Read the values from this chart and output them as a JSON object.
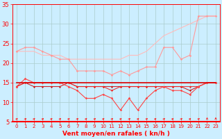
{
  "x": [
    0,
    1,
    2,
    3,
    4,
    5,
    6,
    7,
    8,
    9,
    10,
    11,
    12,
    13,
    14,
    15,
    16,
    17,
    18,
    19,
    20,
    21,
    22,
    23
  ],
  "bg_color": "#cceeff",
  "grid_color": "#aacccc",
  "tick_color": "#ff0000",
  "label_color": "#ff0000",
  "xlabel": "Vent moyen/en rafales ( kn/h )",
  "ylim": [
    5,
    35
  ],
  "yticks": [
    5,
    10,
    15,
    20,
    25,
    30,
    35
  ],
  "series": [
    {
      "values": [
        23,
        24,
        24,
        23,
        22,
        21,
        21,
        18,
        18,
        18,
        18,
        17,
        18,
        17,
        18,
        19,
        19,
        24,
        24,
        21,
        22,
        32,
        32,
        32
      ],
      "color": "#ff9999",
      "lw": 0.8,
      "marker": "D",
      "ms": 1.8,
      "zorder": 3
    },
    {
      "values": [
        23,
        23,
        23,
        22,
        22,
        22,
        21,
        21,
        21,
        21,
        21,
        21,
        21,
        22,
        22,
        23,
        25,
        27,
        28,
        29,
        30,
        31,
        32,
        32
      ],
      "color": "#ffbbbb",
      "lw": 0.8,
      "marker": null,
      "ms": 0,
      "zorder": 2
    },
    {
      "values": [
        14,
        16,
        15,
        15,
        15,
        15,
        14,
        13,
        11,
        11,
        12,
        11,
        8,
        11,
        8,
        11,
        13,
        14,
        13,
        13,
        12,
        14,
        15,
        15
      ],
      "color": "#ff4444",
      "lw": 0.8,
      "marker": "D",
      "ms": 1.8,
      "zorder": 4
    },
    {
      "values": [
        15,
        15,
        15,
        15,
        15,
        15,
        15,
        15,
        15,
        15,
        15,
        15,
        15,
        15,
        15,
        15,
        15,
        15,
        15,
        15,
        15,
        15,
        15,
        15
      ],
      "color": "#dd0000",
      "lw": 1.2,
      "marker": null,
      "ms": 0,
      "zorder": 5
    },
    {
      "values": [
        14,
        15,
        14,
        14,
        14,
        14,
        15,
        14,
        14,
        14,
        14,
        14,
        14,
        14,
        14,
        14,
        14,
        14,
        14,
        14,
        13,
        14,
        15,
        15
      ],
      "color": "#cc1111",
      "lw": 0.7,
      "marker": "D",
      "ms": 1.5,
      "zorder": 3
    },
    {
      "values": [
        14,
        15,
        15,
        15,
        15,
        15,
        15,
        14,
        14,
        14,
        14,
        13,
        14,
        14,
        14,
        14,
        14,
        14,
        14,
        14,
        14,
        14,
        15,
        15
      ],
      "color": "#ee2222",
      "lw": 0.7,
      "marker": "D",
      "ms": 1.5,
      "zorder": 3
    }
  ]
}
